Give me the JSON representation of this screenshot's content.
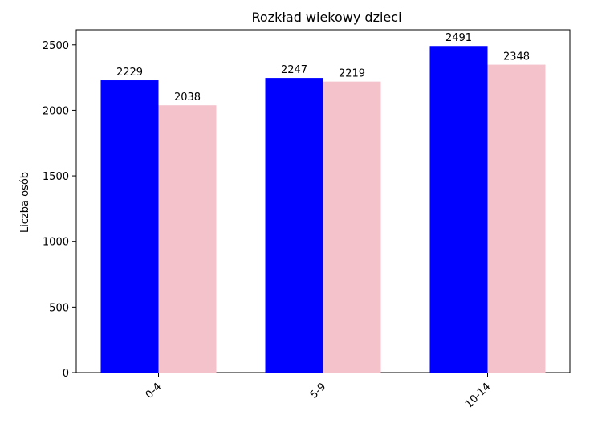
{
  "chart_data": {
    "type": "bar",
    "title": "Rozkład wiekowy dzieci",
    "xlabel": "",
    "ylabel": "Liczba osób",
    "categories": [
      "0-4",
      "5-9",
      "10-14"
    ],
    "series": [
      {
        "color": "#0000ff",
        "values": [
          2229,
          2247,
          2491
        ]
      },
      {
        "color": "#f4c2ca",
        "values": [
          2038,
          2219,
          2348
        ]
      }
    ],
    "ylim": [
      0,
      2615
    ],
    "yticks": [
      0,
      500,
      1000,
      1500,
      2000,
      2500
    ],
    "grid": false,
    "legend": "none"
  }
}
